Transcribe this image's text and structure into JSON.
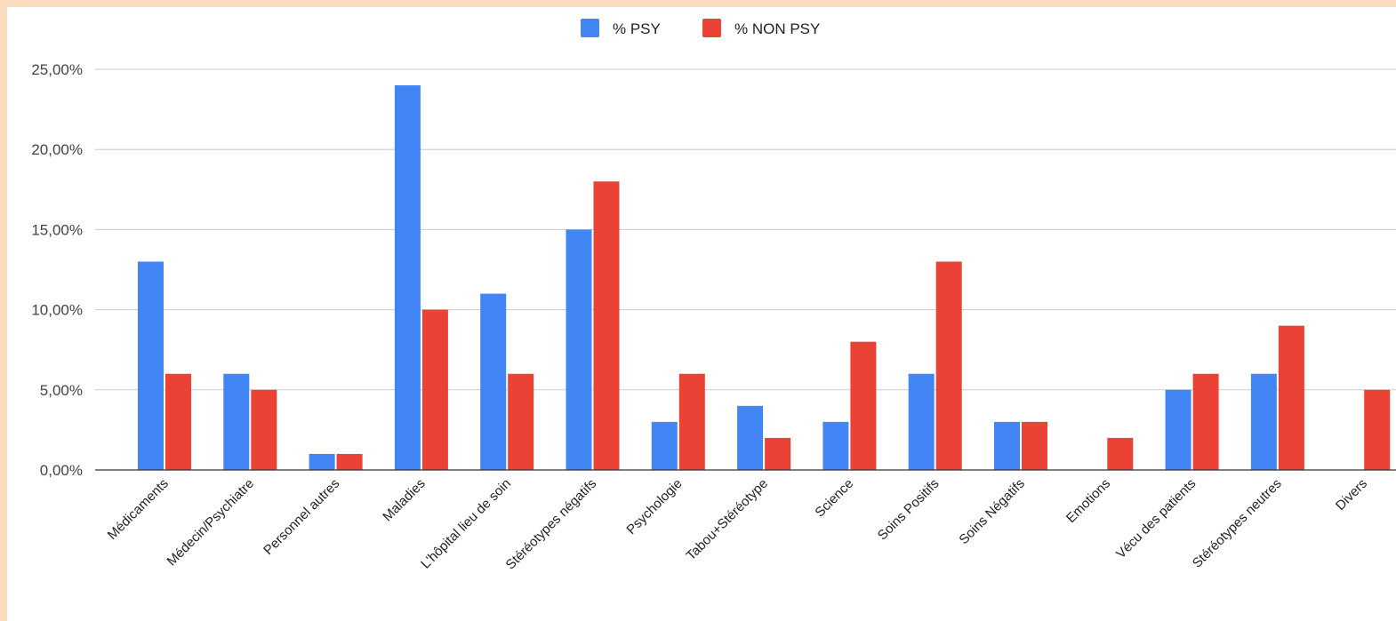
{
  "chart_data": {
    "type": "bar",
    "categories": [
      "Médicaments",
      "Médecin/Psychiatre",
      "Personnel autres",
      "Maladies",
      "L'hôpital lieu de soin",
      "Stéréotypes négatifs",
      "Psychologie",
      "Tabou+Stéréotype",
      "Science",
      "Soins Positifs",
      "Soins Négatifs",
      "Emotions",
      "Vécu des patients",
      "Stéréotypes neutres",
      "Divers"
    ],
    "series": [
      {
        "name": "% PSY",
        "color": "#4285f4",
        "values": [
          13,
          6,
          1,
          24,
          11,
          15,
          3,
          4,
          3,
          6,
          3,
          0,
          5,
          6,
          0
        ]
      },
      {
        "name": "% NON PSY",
        "color": "#ea4335",
        "values": [
          6,
          5,
          1,
          10,
          6,
          18,
          6,
          2,
          8,
          13,
          3,
          2,
          6,
          9,
          5
        ]
      }
    ],
    "y_ticks": [
      "0,00%",
      "5,00%",
      "10,00%",
      "15,00%",
      "20,00%",
      "25,00%"
    ],
    "ylim": [
      0,
      25
    ],
    "grid": true,
    "legend_position": "top-center",
    "title": "",
    "xlabel": "",
    "ylabel": ""
  }
}
